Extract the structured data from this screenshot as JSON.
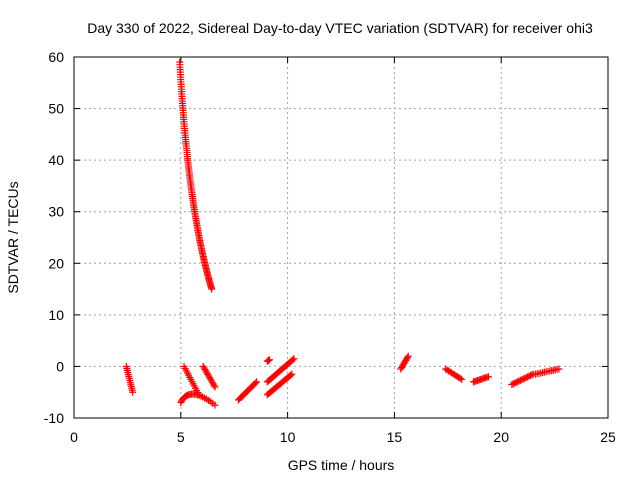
{
  "chart_data": {
    "type": "scatter",
    "title": "Day 330 of 2022, Sidereal Day-to-day VTEC variation (SDTVAR) for receiver ohi3",
    "xlabel": "GPS time / hours",
    "ylabel": "SDTVAR / TECUs",
    "xlim": [
      0,
      25
    ],
    "ylim": [
      -10,
      60
    ],
    "xticks": [
      0,
      5,
      10,
      15,
      20,
      25
    ],
    "yticks": [
      -10,
      0,
      10,
      20,
      30,
      40,
      50,
      60
    ],
    "xtick_labels": [
      "0",
      "5",
      "10",
      "15",
      "20",
      "25"
    ],
    "ytick_labels": [
      "-10",
      "0",
      "10",
      "20",
      "30",
      "40",
      "50",
      "60"
    ],
    "grid": true,
    "marker": "plus",
    "color": "#ff0000",
    "series": [
      {
        "name": "SDTVAR",
        "tracks": [
          {
            "from": [
              4.95,
              59.0
            ],
            "to": [
              6.45,
              15.0
            ],
            "curve": [
              5.35,
              30.0
            ],
            "n": 120
          },
          {
            "from": [
              2.45,
              0.0
            ],
            "to": [
              2.75,
              -5.0
            ],
            "n": 14
          },
          {
            "from": [
              5.15,
              0.0
            ],
            "to": [
              5.85,
              -5.5
            ],
            "n": 14
          },
          {
            "from": [
              6.05,
              0.0
            ],
            "to": [
              6.6,
              -4.0
            ],
            "n": 14
          },
          {
            "from": [
              5.0,
              -7.0
            ],
            "to": [
              6.6,
              -7.5
            ],
            "curve": [
              5.4,
              -3.5
            ],
            "n": 24
          },
          {
            "from": [
              7.7,
              -6.5
            ],
            "to": [
              8.55,
              -3.0
            ],
            "n": 16
          },
          {
            "from": [
              9.05,
              1.0
            ],
            "to": [
              9.15,
              1.3
            ],
            "n": 4
          },
          {
            "from": [
              9.05,
              -3.0
            ],
            "to": [
              10.3,
              1.5
            ],
            "n": 22
          },
          {
            "from": [
              9.05,
              -5.5
            ],
            "to": [
              10.2,
              -1.5
            ],
            "n": 22
          },
          {
            "from": [
              15.3,
              -0.5
            ],
            "to": [
              15.65,
              2.0
            ],
            "n": 10
          },
          {
            "from": [
              17.4,
              -0.5
            ],
            "to": [
              18.15,
              -2.5
            ],
            "n": 12
          },
          {
            "from": [
              18.7,
              -3.0
            ],
            "to": [
              19.4,
              -2.0
            ],
            "n": 12
          },
          {
            "from": [
              20.5,
              -3.5
            ],
            "to": [
              21.5,
              -1.5
            ],
            "n": 16
          },
          {
            "from": [
              21.6,
              -1.5
            ],
            "to": [
              22.7,
              -0.5
            ],
            "n": 14
          }
        ]
      }
    ]
  }
}
